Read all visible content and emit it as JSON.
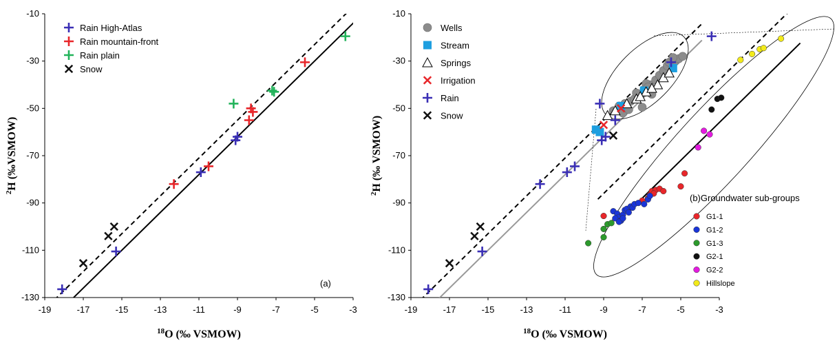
{
  "chart_data": [
    {
      "type": "scatter",
      "panel_label": "(a)",
      "xlabel_sup": "18",
      "xlabel_rest": "O (‰ VSMOW)",
      "ylabel_sup": "2",
      "ylabel_rest": "H (‰VSMOW)",
      "xlim": [
        -19,
        -3
      ],
      "ylim": [
        -130,
        -10
      ],
      "xticks": [
        "-19",
        "-17",
        "-15",
        "-13",
        "-11",
        "-9",
        "-7",
        "-5",
        "-3"
      ],
      "yticks": [
        "-10",
        "-30",
        "-50",
        "-70",
        "-90",
        "-110",
        "-130"
      ],
      "grid": false,
      "legend_position": "top-left",
      "series": [
        {
          "name": "Rain High-Atlas",
          "marker": "plus",
          "color": "#3A2FB5",
          "points": [
            [
              -18.1,
              -126.5
            ],
            [
              -15.3,
              -110.5
            ],
            [
              -10.9,
              -77
            ],
            [
              -9,
              -62
            ],
            [
              -9.1,
              -63.5
            ]
          ]
        },
        {
          "name": "Rain mountain-front",
          "marker": "plus",
          "color": "#E8262A",
          "points": [
            [
              -12.3,
              -82
            ],
            [
              -10.5,
              -74.5
            ],
            [
              -8.4,
              -55
            ],
            [
              -8.2,
              -51.5
            ],
            [
              -8.3,
              -50
            ],
            [
              -5.5,
              -30.5
            ]
          ]
        },
        {
          "name": "Rain plain",
          "marker": "plus",
          "color": "#22B35A",
          "points": [
            [
              -9.2,
              -48
            ],
            [
              -7.1,
              -43
            ],
            [
              -7.2,
              -42.5
            ],
            [
              -3.4,
              -19.5
            ]
          ]
        },
        {
          "name": "Snow",
          "marker": "x",
          "color": "#111111",
          "points": [
            [
              -17,
              -115.5
            ],
            [
              -15.7,
              -104
            ],
            [
              -15.4,
              -100
            ]
          ]
        }
      ],
      "lines": [
        {
          "style": "dashed",
          "color": "#000000",
          "slope": 8,
          "intercept": 17
        },
        {
          "style": "solid",
          "color": "#000000",
          "slope": 8,
          "intercept": 10
        }
      ]
    },
    {
      "type": "scatter",
      "panel_label": "(b)",
      "groups_title": "Groundwater sub-groups",
      "xlabel_sup": "18",
      "xlabel_rest": "O (‰ VSMOW)",
      "ylabel_sup": "2",
      "ylabel_rest": "H (‰ VSMOW)",
      "xlim": [
        -19,
        -3
      ],
      "ylim": [
        -130,
        -10
      ],
      "xticks": [
        "-19",
        "-17",
        "-15",
        "-13",
        "-11",
        "-9",
        "-7",
        "-5",
        "-3"
      ],
      "yticks": [
        "-10",
        "-30",
        "-50",
        "-70",
        "-90",
        "-110",
        "-130"
      ],
      "grid": false,
      "legend_position": "top-left",
      "series": [
        {
          "name": "Wells",
          "marker": "circle",
          "color": "#8C8C8C",
          "points": [
            [
              -8.5,
              -51
            ],
            [
              -8.2,
              -49
            ],
            [
              -7.9,
              -48
            ],
            [
              -7.6,
              -47
            ],
            [
              -7.4,
              -46
            ],
            [
              -7.1,
              -44
            ],
            [
              -6.9,
              -42
            ],
            [
              -6.6,
              -40
            ],
            [
              -6.3,
              -38
            ],
            [
              -6.1,
              -36
            ],
            [
              -5.9,
              -34
            ],
            [
              -5.7,
              -32
            ],
            [
              -5.5,
              -31
            ],
            [
              -5.3,
              -30
            ],
            [
              -5.1,
              -29
            ],
            [
              -4.9,
              -28
            ],
            [
              -6.8,
              -39.5
            ],
            [
              -7.3,
              -43.5
            ],
            [
              -7,
              -49.5
            ],
            [
              -8,
              -52
            ],
            [
              -7.7,
              -50.5
            ],
            [
              -6.5,
              -44
            ],
            [
              -6.7,
              -41
            ],
            [
              -5.6,
              -30.5
            ],
            [
              -5.4,
              -28.5
            ]
          ]
        },
        {
          "name": "Stream",
          "marker": "square",
          "color": "#1E9FE0",
          "points": [
            [
              -9.4,
              -59
            ],
            [
              -9.2,
              -60
            ],
            [
              -8.1,
              -49
            ],
            [
              -6.9,
              -42.5
            ],
            [
              -5.4,
              -33
            ]
          ]
        },
        {
          "name": "Springs",
          "marker": "triangle",
          "color": "#000000",
          "points": [
            [
              -8.8,
              -53
            ],
            [
              -8.4,
              -51
            ],
            [
              -7.8,
              -48
            ],
            [
              -7.3,
              -46
            ],
            [
              -6.8,
              -43
            ],
            [
              -6.2,
              -40
            ],
            [
              -5.9,
              -37
            ],
            [
              -5.6,
              -35
            ],
            [
              -6.5,
              -41.5
            ],
            [
              -7.1,
              -45
            ]
          ]
        },
        {
          "name": "Irrigation",
          "marker": "x",
          "color": "#E8262A",
          "points": [
            [
              -9,
              -57
            ],
            [
              -8.1,
              -50
            ]
          ]
        },
        {
          "name": "Rain",
          "marker": "plus",
          "color": "#3A2FB5",
          "points": [
            [
              -18.1,
              -126.5
            ],
            [
              -15.3,
              -110.5
            ],
            [
              -12.3,
              -82
            ],
            [
              -10.9,
              -77
            ],
            [
              -10.5,
              -74.5
            ],
            [
              -9.2,
              -48
            ],
            [
              -8.9,
              -62
            ],
            [
              -9.1,
              -63.5
            ],
            [
              -8.4,
              -55
            ],
            [
              -5.5,
              -30.5
            ],
            [
              -3.4,
              -19.5
            ]
          ]
        },
        {
          "name": "Snow",
          "marker": "x",
          "color": "#111111",
          "points": [
            [
              -17,
              -115.5
            ],
            [
              -15.7,
              -104
            ],
            [
              -15.4,
              -100
            ],
            [
              -8.5,
              -61.5
            ]
          ]
        },
        {
          "name": "G1-1",
          "marker": "dot",
          "color": "#E8262A",
          "points": [
            [
              -9,
              -95.5
            ],
            [
              -7,
              -89
            ],
            [
              -6.6,
              -86.5
            ],
            [
              -6.5,
              -85
            ],
            [
              -6.3,
              -84.5
            ],
            [
              -6.1,
              -84
            ],
            [
              -5.9,
              -85
            ],
            [
              -5,
              -83
            ],
            [
              -4.8,
              -77.5
            ],
            [
              -6.7,
              -88
            ],
            [
              -6.4,
              -86
            ]
          ]
        },
        {
          "name": "G1-2",
          "marker": "dot",
          "color": "#1A35D8",
          "points": [
            [
              -8.5,
              -93.5
            ],
            [
              -8.3,
              -94.5
            ],
            [
              -8.2,
              -96
            ],
            [
              -8.1,
              -97.5
            ],
            [
              -8,
              -95
            ],
            [
              -7.9,
              -93
            ],
            [
              -7.8,
              -92.5
            ],
            [
              -7.7,
              -94
            ],
            [
              -7.6,
              -91.5
            ],
            [
              -7.5,
              -92
            ],
            [
              -7.4,
              -90.5
            ],
            [
              -7.2,
              -90
            ],
            [
              -6.9,
              -90.5
            ],
            [
              -6.7,
              -88.5
            ],
            [
              -6.6,
              -87
            ],
            [
              -8.4,
              -96.5
            ],
            [
              -8.2,
              -98
            ],
            [
              -8,
              -96.5
            ]
          ]
        },
        {
          "name": "G1-3",
          "marker": "dot",
          "color": "#2C9A2C",
          "points": [
            [
              -9.8,
              -107
            ],
            [
              -9,
              -104.5
            ],
            [
              -9,
              -101
            ],
            [
              -8.8,
              -99
            ],
            [
              -8.6,
              -98.5
            ]
          ]
        },
        {
          "name": "G2-1",
          "marker": "dot",
          "color": "#111111",
          "points": [
            [
              -3.4,
              -50.5
            ],
            [
              -3.1,
              -46
            ],
            [
              -2.9,
              -45.5
            ]
          ]
        },
        {
          "name": "G2-2",
          "marker": "dot",
          "color": "#E41BE0",
          "points": [
            [
              -4.1,
              -66.5
            ],
            [
              -3.8,
              -59.5
            ],
            [
              -3.5,
              -61
            ]
          ]
        },
        {
          "name": "Hillslope",
          "marker": "dot",
          "color": "#F2EA1A",
          "points": [
            [
              -1.9,
              -29.5
            ],
            [
              -1.3,
              -27
            ],
            [
              -0.9,
              -25
            ],
            [
              -0.7,
              -24.5
            ],
            [
              0.2,
              -20.5
            ]
          ]
        }
      ],
      "lines": [
        {
          "style": "dashed",
          "color": "#000000",
          "slope": 8,
          "intercept": 17
        },
        {
          "style": "solid",
          "color": "#999999",
          "slope": 8,
          "intercept": 10
        },
        {
          "style": "dashed",
          "color": "#000000",
          "slope": 8,
          "intercept": -14
        },
        {
          "style": "solid",
          "color": "#000000",
          "slope": 8,
          "intercept": -32
        }
      ]
    }
  ]
}
